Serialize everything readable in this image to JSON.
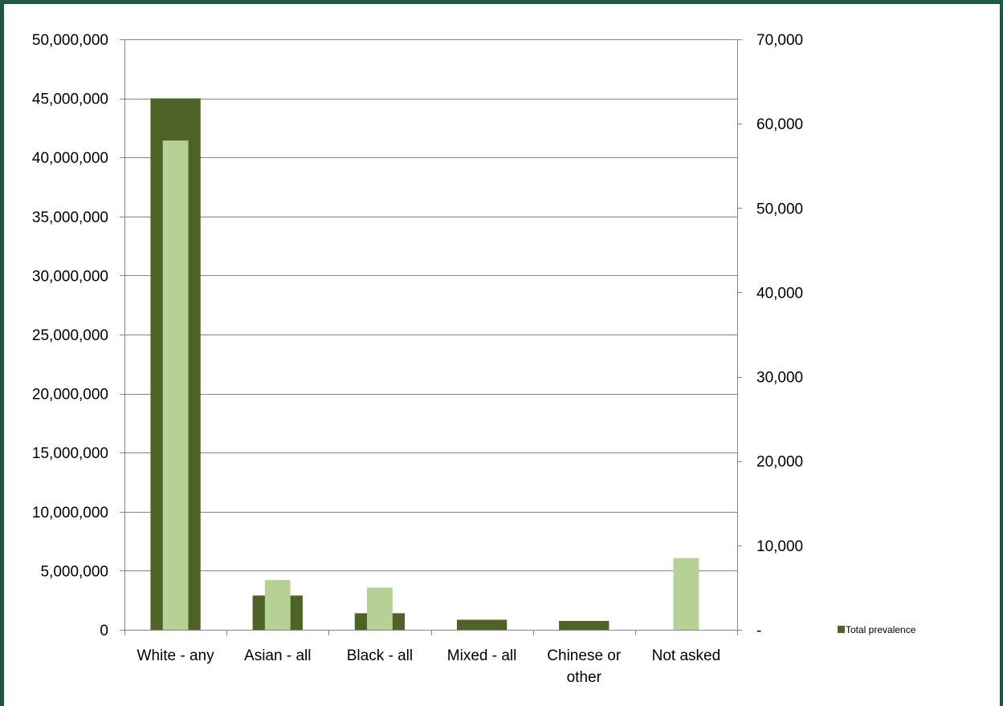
{
  "colors": {
    "frame": "#1f5a40",
    "series_primary": "#4f6228",
    "series_secondary": "#b5d196",
    "gridline": "#868686",
    "axis": "#868686"
  },
  "chart_data": {
    "type": "bar",
    "categories": [
      "White - any",
      "Asian - all",
      "Black - all",
      "Mixed - all",
      "Chinese or other",
      "Not asked"
    ],
    "category_label_lines": [
      [
        "White - any"
      ],
      [
        "Asian - all"
      ],
      [
        "Black - all"
      ],
      [
        "Mixed - all"
      ],
      [
        "Chinese or",
        "other"
      ],
      [
        "Not asked"
      ]
    ],
    "series": [
      {
        "name": "Total prevalence",
        "axis": "left",
        "color": "#4f6228",
        "values": [
          45000000,
          2900000,
          1400000,
          850000,
          750000,
          0
        ]
      },
      {
        "name": "",
        "axis": "right",
        "color": "#b5d196",
        "values": [
          58000,
          5900,
          5000,
          0,
          0,
          8500
        ]
      }
    ],
    "y_left": {
      "lim": [
        0,
        50000000
      ],
      "ticks": [
        0,
        5000000,
        10000000,
        15000000,
        20000000,
        25000000,
        30000000,
        35000000,
        40000000,
        45000000,
        50000000
      ],
      "tick_labels": [
        "0",
        "5,000,000",
        "10,000,000",
        "15,000,000",
        "20,000,000",
        "25,000,000",
        "30,000,000",
        "35,000,000",
        "40,000,000",
        "45,000,000",
        "50,000,000"
      ]
    },
    "y_right": {
      "lim": [
        0,
        70000
      ],
      "ticks": [
        0,
        10000,
        20000,
        30000,
        40000,
        50000,
        60000,
        70000
      ],
      "tick_labels": [
        "-",
        "10,000",
        "20,000",
        "30,000",
        "40,000",
        "50,000",
        "60,000",
        "70,000"
      ]
    },
    "title": "",
    "xlabel": "",
    "ylabel": "",
    "grid": true,
    "legend": {
      "position": "right",
      "entries": [
        "Total prevalence"
      ]
    }
  }
}
